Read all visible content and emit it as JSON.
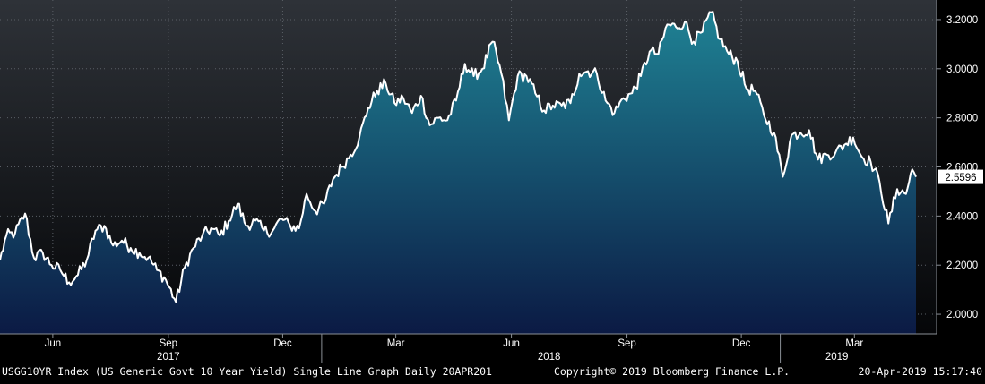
{
  "footer": {
    "left": "USGG10YR Index (US Generic Govt 10 Year Yield) Single Line Graph  Daily 20APR201",
    "center": "Copyright© 2019 Bloomberg Finance L.P.",
    "right": "20-Apr-2019 15:17:40"
  },
  "colors": {
    "background_top": "#2e3238",
    "background_bottom": "#050608",
    "area_top": "#1f8294",
    "area_bottom": "#0b1a44",
    "line": "#ffffff",
    "last_value_box_fill": "#ffffff",
    "last_value_box_text": "#000000"
  },
  "chart_data": {
    "type": "area",
    "title": "",
    "xlabel": "",
    "ylabel": "",
    "ylim": [
      1.92,
      3.28
    ],
    "xlim": [
      "2017-04-20",
      "2019-04-19"
    ],
    "grid": true,
    "y_ticks": [
      {
        "value": 2.0,
        "label": "2.0000"
      },
      {
        "value": 2.2,
        "label": "2.2000"
      },
      {
        "value": 2.4,
        "label": "2.4000"
      },
      {
        "value": 2.6,
        "label": "2.6000"
      },
      {
        "value": 2.8,
        "label": "2.8000"
      },
      {
        "value": 3.0,
        "label": "3.0000"
      },
      {
        "value": 3.2,
        "label": "3.2000"
      }
    ],
    "x_month_ticks": [
      {
        "date": "2017-06-01",
        "label": "Jun"
      },
      {
        "date": "2017-09-01",
        "label": "Sep"
      },
      {
        "date": "2017-12-01",
        "label": "Dec"
      },
      {
        "date": "2018-03-01",
        "label": "Mar"
      },
      {
        "date": "2018-06-01",
        "label": "Jun"
      },
      {
        "date": "2018-09-01",
        "label": "Sep"
      },
      {
        "date": "2018-12-01",
        "label": "Dec"
      },
      {
        "date": "2019-03-01",
        "label": "Mar"
      }
    ],
    "x_year_labels": [
      {
        "date": "2017-09-01",
        "label": "2017"
      },
      {
        "date": "2018-07-01",
        "label": "2018"
      },
      {
        "date": "2019-02-15",
        "label": "2019"
      }
    ],
    "x_year_dividers": [
      "2018-01-01",
      "2019-01-01"
    ],
    "last_value": {
      "date": "2019-04-19",
      "value": 2.5596,
      "label": "2.5596"
    },
    "series": [
      {
        "points": [
          [
            "2017-04-20",
            2.22
          ],
          [
            "2017-04-25",
            2.32
          ],
          [
            "2017-05-02",
            2.33
          ],
          [
            "2017-05-10",
            2.41
          ],
          [
            "2017-05-17",
            2.23
          ],
          [
            "2017-05-24",
            2.25
          ],
          [
            "2017-05-31",
            2.2
          ],
          [
            "2017-06-07",
            2.18
          ],
          [
            "2017-06-14",
            2.13
          ],
          [
            "2017-06-21",
            2.16
          ],
          [
            "2017-06-28",
            2.22
          ],
          [
            "2017-07-05",
            2.34
          ],
          [
            "2017-07-12",
            2.36
          ],
          [
            "2017-07-19",
            2.28
          ],
          [
            "2017-07-26",
            2.3
          ],
          [
            "2017-08-02",
            2.27
          ],
          [
            "2017-08-09",
            2.25
          ],
          [
            "2017-08-16",
            2.23
          ],
          [
            "2017-08-23",
            2.18
          ],
          [
            "2017-08-30",
            2.14
          ],
          [
            "2017-09-07",
            2.05
          ],
          [
            "2017-09-14",
            2.19
          ],
          [
            "2017-09-21",
            2.27
          ],
          [
            "2017-09-28",
            2.32
          ],
          [
            "2017-10-05",
            2.35
          ],
          [
            "2017-10-12",
            2.32
          ],
          [
            "2017-10-19",
            2.38
          ],
          [
            "2017-10-26",
            2.45
          ],
          [
            "2017-11-02",
            2.36
          ],
          [
            "2017-11-09",
            2.38
          ],
          [
            "2017-11-16",
            2.34
          ],
          [
            "2017-11-23",
            2.34
          ],
          [
            "2017-11-30",
            2.39
          ],
          [
            "2017-12-07",
            2.36
          ],
          [
            "2017-12-14",
            2.35
          ],
          [
            "2017-12-20",
            2.49
          ],
          [
            "2017-12-27",
            2.42
          ],
          [
            "2018-01-03",
            2.45
          ],
          [
            "2018-01-10",
            2.55
          ],
          [
            "2018-01-17",
            2.6
          ],
          [
            "2018-01-24",
            2.65
          ],
          [
            "2018-01-31",
            2.72
          ],
          [
            "2018-02-07",
            2.84
          ],
          [
            "2018-02-14",
            2.91
          ],
          [
            "2018-02-21",
            2.94
          ],
          [
            "2018-02-28",
            2.86
          ],
          [
            "2018-03-07",
            2.88
          ],
          [
            "2018-03-14",
            2.82
          ],
          [
            "2018-03-21",
            2.89
          ],
          [
            "2018-03-28",
            2.77
          ],
          [
            "2018-04-04",
            2.8
          ],
          [
            "2018-04-11",
            2.79
          ],
          [
            "2018-04-18",
            2.87
          ],
          [
            "2018-04-25",
            3.02
          ],
          [
            "2018-05-02",
            2.97
          ],
          [
            "2018-05-09",
            3.0
          ],
          [
            "2018-05-17",
            3.11
          ],
          [
            "2018-05-24",
            2.98
          ],
          [
            "2018-05-30",
            2.79
          ],
          [
            "2018-06-06",
            2.97
          ],
          [
            "2018-06-13",
            2.97
          ],
          [
            "2018-06-20",
            2.9
          ],
          [
            "2018-06-27",
            2.83
          ],
          [
            "2018-07-04",
            2.85
          ],
          [
            "2018-07-11",
            2.85
          ],
          [
            "2018-07-18",
            2.86
          ],
          [
            "2018-07-25",
            2.98
          ],
          [
            "2018-08-01",
            2.99
          ],
          [
            "2018-08-08",
            2.98
          ],
          [
            "2018-08-15",
            2.87
          ],
          [
            "2018-08-22",
            2.82
          ],
          [
            "2018-08-29",
            2.88
          ],
          [
            "2018-09-05",
            2.9
          ],
          [
            "2018-09-12",
            2.97
          ],
          [
            "2018-09-19",
            3.07
          ],
          [
            "2018-09-26",
            3.06
          ],
          [
            "2018-10-03",
            3.18
          ],
          [
            "2018-10-10",
            3.17
          ],
          [
            "2018-10-17",
            3.19
          ],
          [
            "2018-10-24",
            3.11
          ],
          [
            "2018-10-31",
            3.15
          ],
          [
            "2018-11-07",
            3.23
          ],
          [
            "2018-11-14",
            3.12
          ],
          [
            "2018-11-21",
            3.06
          ],
          [
            "2018-11-28",
            3.03
          ],
          [
            "2018-12-05",
            2.92
          ],
          [
            "2018-12-12",
            2.91
          ],
          [
            "2018-12-19",
            2.81
          ],
          [
            "2018-12-27",
            2.74
          ],
          [
            "2019-01-03",
            2.56
          ],
          [
            "2019-01-10",
            2.73
          ],
          [
            "2019-01-17",
            2.74
          ],
          [
            "2019-01-24",
            2.75
          ],
          [
            "2019-01-31",
            2.63
          ],
          [
            "2019-02-07",
            2.65
          ],
          [
            "2019-02-14",
            2.66
          ],
          [
            "2019-02-21",
            2.69
          ],
          [
            "2019-02-28",
            2.72
          ],
          [
            "2019-03-07",
            2.64
          ],
          [
            "2019-03-14",
            2.62
          ],
          [
            "2019-03-21",
            2.54
          ],
          [
            "2019-03-28",
            2.37
          ],
          [
            "2019-04-04",
            2.51
          ],
          [
            "2019-04-11",
            2.49
          ],
          [
            "2019-04-16",
            2.59
          ],
          [
            "2019-04-19",
            2.5596
          ]
        ]
      }
    ]
  }
}
